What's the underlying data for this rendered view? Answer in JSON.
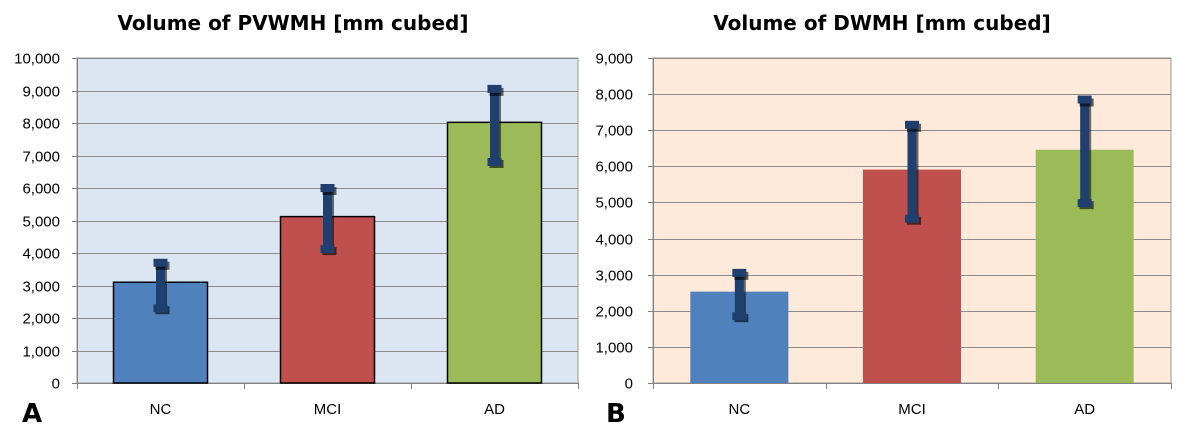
{
  "chart_data": [
    {
      "type": "bar",
      "panel_label": "A",
      "title": "Volume of PVWMH [mm cubed]",
      "categories": [
        "NC",
        "MCI",
        "AD"
      ],
      "values": [
        3100,
        5120,
        8020
      ],
      "error_low": [
        2300,
        4120,
        6800
      ],
      "error_high": [
        3700,
        6000,
        9050
      ],
      "ylim": [
        0,
        10000
      ],
      "yticks": [
        0,
        1000,
        2000,
        3000,
        4000,
        5000,
        6000,
        7000,
        8000,
        9000,
        10000
      ],
      "ytick_labels": [
        "0",
        "1,000",
        "2,000",
        "3,000",
        "4,000",
        "5,000",
        "6,000",
        "7,000",
        "8,000",
        "9,000",
        "10,000"
      ],
      "xlabel": "",
      "ylabel": "",
      "grid": true,
      "colors": {
        "bars": [
          "#4F81BD",
          "#C0504D",
          "#9BBB59"
        ],
        "bar_outline": "#000000",
        "background": "#DCE6F2",
        "errorbar": "#1F3F6E"
      }
    },
    {
      "type": "bar",
      "panel_label": "B",
      "title": "Volume of DWMH [mm cubed]",
      "categories": [
        "NC",
        "MCI",
        "AD"
      ],
      "values": [
        2530,
        5910,
        6460
      ],
      "error_low": [
        1850,
        4550,
        4980
      ],
      "error_high": [
        3050,
        7150,
        7850
      ],
      "ylim": [
        0,
        9000
      ],
      "yticks": [
        0,
        1000,
        2000,
        3000,
        4000,
        5000,
        6000,
        7000,
        8000,
        9000
      ],
      "ytick_labels": [
        "0",
        "1,000",
        "2,000",
        "3,000",
        "4,000",
        "5,000",
        "6,000",
        "7,000",
        "8,000",
        "9,000"
      ],
      "xlabel": "",
      "ylabel": "",
      "grid": true,
      "colors": {
        "bars": [
          "#4F81BD",
          "#C0504D",
          "#9BBB59"
        ],
        "bar_outline": "none",
        "background": "#FDEADA",
        "errorbar": "#1F3F6E"
      }
    }
  ]
}
